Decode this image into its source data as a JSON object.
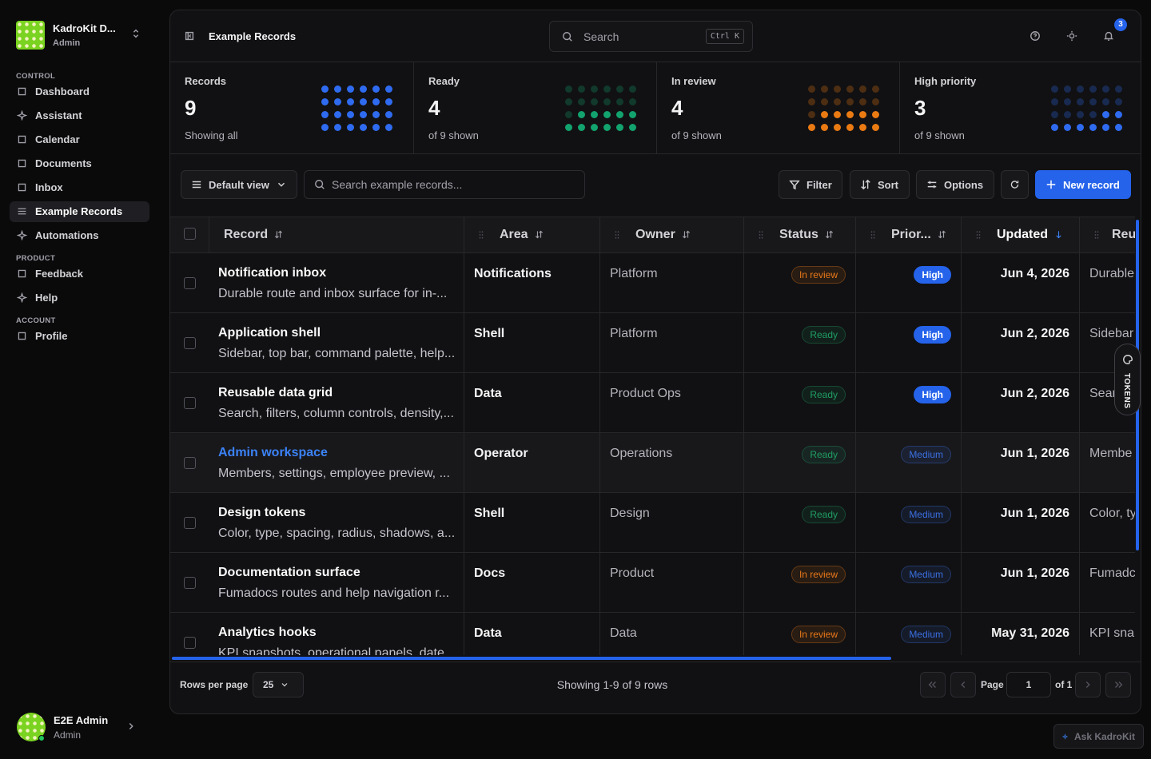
{
  "sidebar": {
    "workspace": {
      "name": "KadroKit D...",
      "role": "Admin"
    },
    "sections": [
      {
        "label": "CONTROL",
        "items": [
          {
            "label": "Dashboard"
          },
          {
            "label": "Assistant"
          },
          {
            "label": "Calendar"
          },
          {
            "label": "Documents"
          },
          {
            "label": "Inbox"
          },
          {
            "label": "Example Records",
            "active": true
          },
          {
            "label": "Automations"
          }
        ]
      },
      {
        "label": "PRODUCT",
        "items": [
          {
            "label": "Feedback"
          },
          {
            "label": "Help"
          }
        ]
      },
      {
        "label": "ACCOUNT",
        "items": [
          {
            "label": "Profile"
          }
        ]
      }
    ],
    "user": {
      "name": "E2E Admin",
      "role": "Admin"
    }
  },
  "topbar": {
    "title": "Example Records",
    "search": "Search",
    "shortcut": "Ctrl K",
    "notifications": 3
  },
  "stats": [
    {
      "label": "Records",
      "value": 9,
      "caption": "Showing all",
      "color": "#2f6bf0"
    },
    {
      "label": "Ready",
      "value": 4,
      "caption": "of 9 shown",
      "color": "#12a36e"
    },
    {
      "label": "In review",
      "value": 4,
      "caption": "of 9 shown",
      "color": "#ea7a12"
    },
    {
      "label": "High priority",
      "value": 3,
      "caption": "of 9 shown",
      "color": "#2f6bf0"
    }
  ],
  "toolbar": {
    "view": "Default view",
    "search": "Search example records...",
    "filter": "Filter",
    "sort": "Sort",
    "options": "Options",
    "new": "New record"
  },
  "table": {
    "columns": [
      {
        "label": "Record"
      },
      {
        "label": "Area"
      },
      {
        "label": "Owner"
      },
      {
        "label": "Status"
      },
      {
        "label": "Prior..."
      },
      {
        "label": "Updated",
        "sorted": true
      },
      {
        "label": "Reu"
      }
    ],
    "rows": [
      {
        "title": "Notification inbox",
        "description": "Durable route and inbox surface for in-...",
        "area": "Notifications",
        "owner": "Platform",
        "status": {
          "label": "In review",
          "color": "#e8781a"
        },
        "priority": {
          "label": "High",
          "color": "#2563eb",
          "solid": true
        },
        "updated": "Jun 4, 2026",
        "extra": "Durable"
      },
      {
        "title": "Application shell",
        "description": "Sidebar, top bar, command palette, help...",
        "area": "Shell",
        "owner": "Platform",
        "status": {
          "label": "Ready",
          "color": "#1f9d63"
        },
        "priority": {
          "label": "High",
          "color": "#2563eb",
          "solid": true
        },
        "updated": "Jun 2, 2026",
        "extra": "Sidebar"
      },
      {
        "title": "Reusable data grid",
        "description": "Search, filters, column controls, density,...",
        "area": "Data",
        "owner": "Product Ops",
        "status": {
          "label": "Ready",
          "color": "#1f9d63"
        },
        "priority": {
          "label": "High",
          "color": "#2563eb",
          "solid": true
        },
        "updated": "Jun 2, 2026",
        "extra": "Sear"
      },
      {
        "title": "Admin workspace",
        "description": "Members, settings, employee preview, ...",
        "area": "Operator",
        "owner": "Operations",
        "status": {
          "label": "Ready",
          "color": "#1f9d63"
        },
        "priority": {
          "label": "Medium",
          "color": "#3b6fe0",
          "solid": false
        },
        "updated": "Jun 1, 2026",
        "extra": "Membe",
        "highlighted": true
      },
      {
        "title": "Design tokens",
        "description": "Color, type, spacing, radius, shadows, a...",
        "area": "Shell",
        "owner": "Design",
        "status": {
          "label": "Ready",
          "color": "#1f9d63"
        },
        "priority": {
          "label": "Medium",
          "color": "#3b6fe0",
          "solid": false
        },
        "updated": "Jun 1, 2026",
        "extra": "Color, ty"
      },
      {
        "title": "Documentation surface",
        "description": "Fumadocs routes and help navigation r...",
        "area": "Docs",
        "owner": "Product",
        "status": {
          "label": "In review",
          "color": "#e8781a"
        },
        "priority": {
          "label": "Medium",
          "color": "#3b6fe0",
          "solid": false
        },
        "updated": "Jun 1, 2026",
        "extra": "Fumadc"
      },
      {
        "title": "Analytics hooks",
        "description": "KPI snapshots, operational panels, date",
        "area": "Data",
        "owner": "Data",
        "status": {
          "label": "In review",
          "color": "#e8781a"
        },
        "priority": {
          "label": "Medium",
          "color": "#3b6fe0",
          "solid": false
        },
        "updated": "May 31, 2026",
        "extra": "KPI snap"
      }
    ]
  },
  "footer": {
    "rows_label": "Rows per page",
    "rows_value": "25",
    "showing": "Showing 1-9 of 9 rows",
    "page_label": "Page",
    "page": "1",
    "page_of": "of 1"
  },
  "tokens_tab": "TOKENS",
  "assistant": "Ask KadroKit"
}
